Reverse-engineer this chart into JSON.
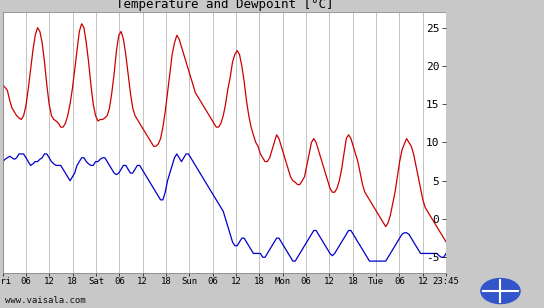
{
  "title": "Temperature and Dewpoint [°C]",
  "bg_color": "#c8c8c8",
  "plot_bg_color": "#ffffff",
  "grid_color": "#aaaaaa",
  "temp_color": "#cc0000",
  "dew_color": "#0000cc",
  "ylim": [
    -7,
    27
  ],
  "yticks": [
    -5,
    0,
    5,
    10,
    15,
    20,
    25
  ],
  "xtick_labels": [
    "Fri",
    "06",
    "12",
    "18",
    "Sat",
    "06",
    "12",
    "18",
    "Sun",
    "06",
    "12",
    "18",
    "Mon",
    "06",
    "12",
    "18",
    "Tue",
    "06",
    "12",
    "23:45"
  ],
  "xlabel_bottom": "www.vaisala.com",
  "line_width": 0.9,
  "temp_data": [
    17.5,
    17.2,
    16.8,
    15.5,
    14.5,
    14.0,
    13.5,
    13.2,
    13.0,
    13.5,
    14.8,
    17.0,
    19.5,
    22.0,
    24.0,
    25.0,
    24.5,
    23.0,
    20.5,
    17.5,
    15.0,
    13.5,
    13.0,
    12.8,
    12.5,
    12.0,
    12.0,
    12.5,
    13.5,
    15.0,
    17.0,
    19.5,
    22.0,
    24.5,
    25.5,
    25.0,
    23.0,
    20.5,
    17.5,
    15.0,
    13.5,
    12.8,
    13.0,
    13.0,
    13.2,
    13.5,
    14.5,
    16.5,
    19.0,
    22.0,
    24.0,
    24.5,
    23.5,
    21.5,
    19.0,
    16.5,
    14.5,
    13.5,
    13.0,
    12.5,
    12.0,
    11.5,
    11.0,
    10.5,
    10.0,
    9.5,
    9.5,
    9.8,
    10.5,
    12.0,
    14.0,
    16.5,
    19.0,
    21.5,
    23.0,
    24.0,
    23.5,
    22.5,
    21.5,
    20.5,
    19.5,
    18.5,
    17.5,
    16.5,
    16.0,
    15.5,
    15.0,
    14.5,
    14.0,
    13.5,
    13.0,
    12.5,
    12.0,
    12.0,
    12.5,
    13.5,
    15.0,
    17.0,
    18.5,
    20.5,
    21.5,
    22.0,
    21.5,
    20.0,
    18.0,
    15.5,
    13.5,
    12.0,
    11.0,
    10.0,
    9.5,
    8.5,
    8.0,
    7.5,
    7.5,
    8.0,
    9.0,
    10.0,
    11.0,
    10.5,
    9.5,
    8.5,
    7.5,
    6.5,
    5.5,
    5.0,
    4.8,
    4.5,
    4.5,
    5.0,
    5.5,
    7.0,
    8.5,
    10.0,
    10.5,
    10.0,
    9.0,
    8.0,
    7.0,
    6.0,
    5.0,
    4.0,
    3.5,
    3.5,
    4.0,
    5.0,
    6.5,
    8.5,
    10.5,
    11.0,
    10.5,
    9.5,
    8.5,
    7.5,
    6.0,
    4.5,
    3.5,
    3.0,
    2.5,
    2.0,
    1.5,
    1.0,
    0.5,
    0.0,
    -0.5,
    -1.0,
    -0.5,
    0.5,
    2.0,
    3.5,
    5.5,
    7.5,
    9.0,
    9.8,
    10.5,
    10.0,
    9.5,
    8.5,
    7.0,
    5.5,
    4.0,
    2.5,
    1.5,
    1.0,
    0.5,
    0.0,
    -0.5,
    -1.0,
    -1.5,
    -2.0,
    -2.5,
    -3.0
  ],
  "dew_data": [
    7.5,
    7.8,
    8.0,
    8.2,
    8.0,
    7.8,
    8.0,
    8.5,
    8.5,
    8.5,
    8.0,
    7.5,
    7.0,
    7.2,
    7.5,
    7.5,
    7.8,
    8.0,
    8.5,
    8.5,
    8.0,
    7.5,
    7.2,
    7.0,
    7.0,
    7.0,
    6.5,
    6.0,
    5.5,
    5.0,
    5.5,
    6.0,
    7.0,
    7.5,
    8.0,
    8.0,
    7.5,
    7.2,
    7.0,
    7.0,
    7.5,
    7.5,
    7.8,
    8.0,
    8.0,
    7.5,
    7.0,
    6.5,
    6.0,
    5.8,
    6.0,
    6.5,
    7.0,
    7.0,
    6.5,
    6.0,
    6.0,
    6.5,
    7.0,
    7.0,
    6.5,
    6.0,
    5.5,
    5.0,
    4.5,
    4.0,
    3.5,
    3.0,
    2.5,
    2.5,
    3.5,
    5.0,
    6.0,
    7.0,
    8.0,
    8.5,
    8.0,
    7.5,
    8.0,
    8.5,
    8.5,
    8.0,
    7.5,
    7.0,
    6.5,
    6.0,
    5.5,
    5.0,
    4.5,
    4.0,
    3.5,
    3.0,
    2.5,
    2.0,
    1.5,
    1.0,
    0.0,
    -1.0,
    -2.0,
    -3.0,
    -3.5,
    -3.5,
    -3.0,
    -2.5,
    -2.5,
    -3.0,
    -3.5,
    -4.0,
    -4.5,
    -4.5,
    -4.5,
    -4.5,
    -5.0,
    -5.0,
    -4.5,
    -4.0,
    -3.5,
    -3.0,
    -2.5,
    -2.5,
    -3.0,
    -3.5,
    -4.0,
    -4.5,
    -5.0,
    -5.5,
    -5.5,
    -5.0,
    -4.5,
    -4.0,
    -3.5,
    -3.0,
    -2.5,
    -2.0,
    -1.5,
    -1.5,
    -2.0,
    -2.5,
    -3.0,
    -3.5,
    -4.0,
    -4.5,
    -4.8,
    -4.5,
    -4.0,
    -3.5,
    -3.0,
    -2.5,
    -2.0,
    -1.5,
    -1.5,
    -2.0,
    -2.5,
    -3.0,
    -3.5,
    -4.0,
    -4.5,
    -5.0,
    -5.5,
    -5.5,
    -5.5,
    -5.5,
    -5.5,
    -5.5,
    -5.5,
    -5.5,
    -5.0,
    -4.5,
    -4.0,
    -3.5,
    -3.0,
    -2.5,
    -2.0,
    -1.8,
    -1.8,
    -2.0,
    -2.5,
    -3.0,
    -3.5,
    -4.0,
    -4.5,
    -4.5,
    -4.5,
    -4.5,
    -4.5,
    -4.5,
    -4.5,
    -4.5,
    -4.8,
    -5.0,
    -5.0,
    -4.5
  ]
}
